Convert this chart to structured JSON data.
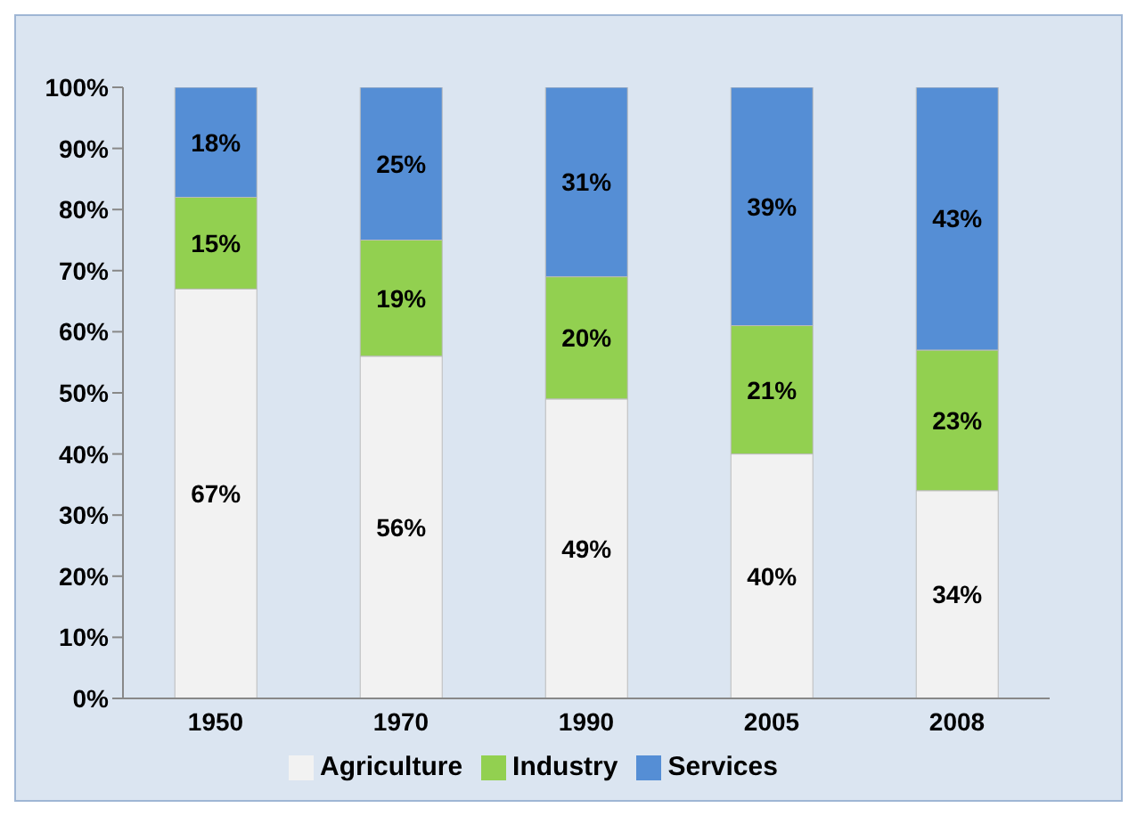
{
  "chart_data": {
    "type": "bar",
    "stacked": true,
    "categories": [
      "1950",
      "1970",
      "1990",
      "2005",
      "2008"
    ],
    "series": [
      {
        "name": "Agriculture",
        "color": "#f2f2f2",
        "values": [
          67,
          56,
          49,
          40,
          34
        ],
        "value_labels": [
          "67%",
          "56%",
          "49%",
          "40%",
          "34%"
        ]
      },
      {
        "name": "Industry",
        "color": "#92d050",
        "values": [
          15,
          19,
          20,
          21,
          23
        ],
        "value_labels": [
          "15%",
          "19%",
          "20%",
          "21%",
          "23%"
        ]
      },
      {
        "name": "Services",
        "color": "#558ed5",
        "values": [
          18,
          25,
          31,
          39,
          43
        ],
        "value_labels": [
          "18%",
          "25%",
          "31%",
          "39%",
          "43%"
        ]
      }
    ],
    "ylim": [
      0,
      100
    ],
    "yticks": [
      {
        "value": 0,
        "label": "0%"
      },
      {
        "value": 10,
        "label": "10%"
      },
      {
        "value": 20,
        "label": "20%"
      },
      {
        "value": 30,
        "label": "30%"
      },
      {
        "value": 40,
        "label": "40%"
      },
      {
        "value": 50,
        "label": "50%"
      },
      {
        "value": 60,
        "label": "60%"
      },
      {
        "value": 70,
        "label": "70%"
      },
      {
        "value": 80,
        "label": "80%"
      },
      {
        "value": 90,
        "label": "90%"
      },
      {
        "value": 100,
        "label": "100%"
      }
    ],
    "grid": false,
    "legend": "bottom"
  }
}
